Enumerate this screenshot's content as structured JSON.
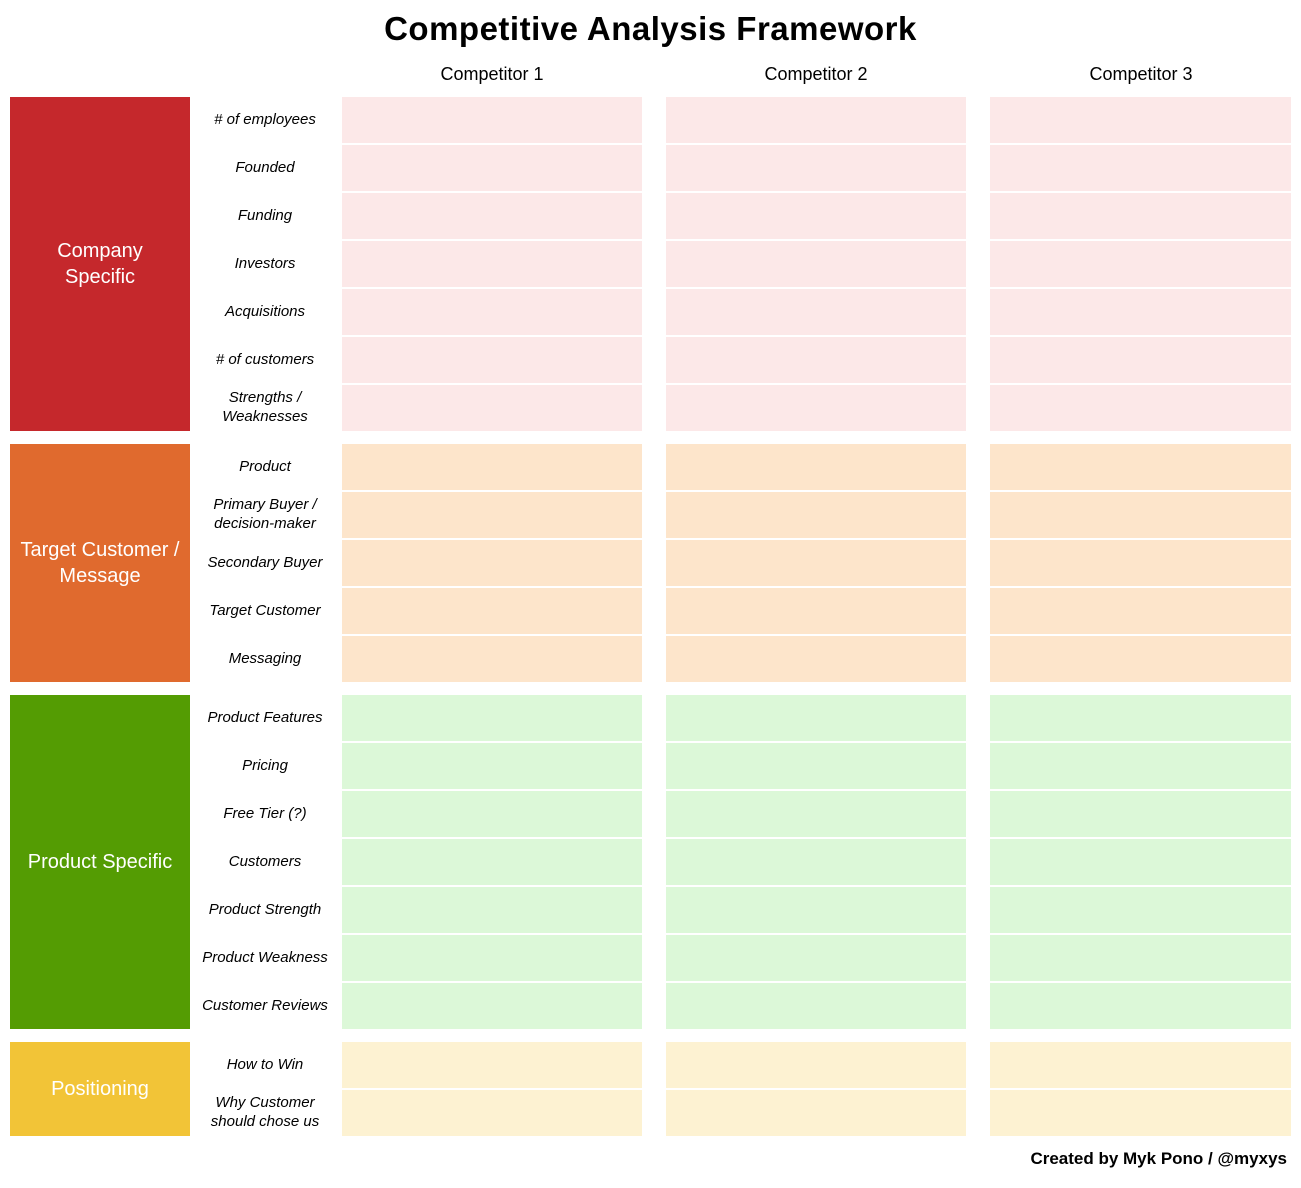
{
  "title": "Competitive Analysis Framework",
  "competitors": [
    "Competitor 1",
    "Competitor 2",
    "Competitor 3"
  ],
  "credit": "Created by Myk Pono / @myxys",
  "colors": {
    "company_block": "#c5282c",
    "company_cell": "#fce8e8",
    "target_block": "#e06a2e",
    "target_cell": "#fde5cb",
    "product_block": "#549c03",
    "product_cell": "#dcf8d8",
    "positioning_block": "#f2c437",
    "positioning_cell": "#fdf2d2"
  },
  "groups": [
    {
      "label": "Company Specific",
      "block_color": "#c5282c",
      "cell_color": "#fce8e8",
      "rows": [
        "# of employees",
        "Founded",
        "Funding",
        "Investors",
        "Acquisitions",
        "# of customers",
        "Strengths / Weaknesses"
      ]
    },
    {
      "label": "Target Customer / Message",
      "block_color": "#e06a2e",
      "cell_color": "#fde5cb",
      "rows": [
        "Product",
        "Primary Buyer / decision-maker",
        "Secondary Buyer",
        "Target Customer",
        "Messaging"
      ]
    },
    {
      "label": "Product Specific",
      "block_color": "#549c03",
      "cell_color": "#dcf8d8",
      "rows": [
        "Product Features",
        "Pricing",
        "Free Tier (?)",
        "Customers",
        "Product Strength",
        "Product Weakness",
        "Customer Reviews"
      ]
    },
    {
      "label": "Positioning",
      "block_color": "#f2c437",
      "cell_color": "#fdf2d2",
      "rows": [
        "How to Win",
        "Why Customer should chose us"
      ]
    }
  ]
}
